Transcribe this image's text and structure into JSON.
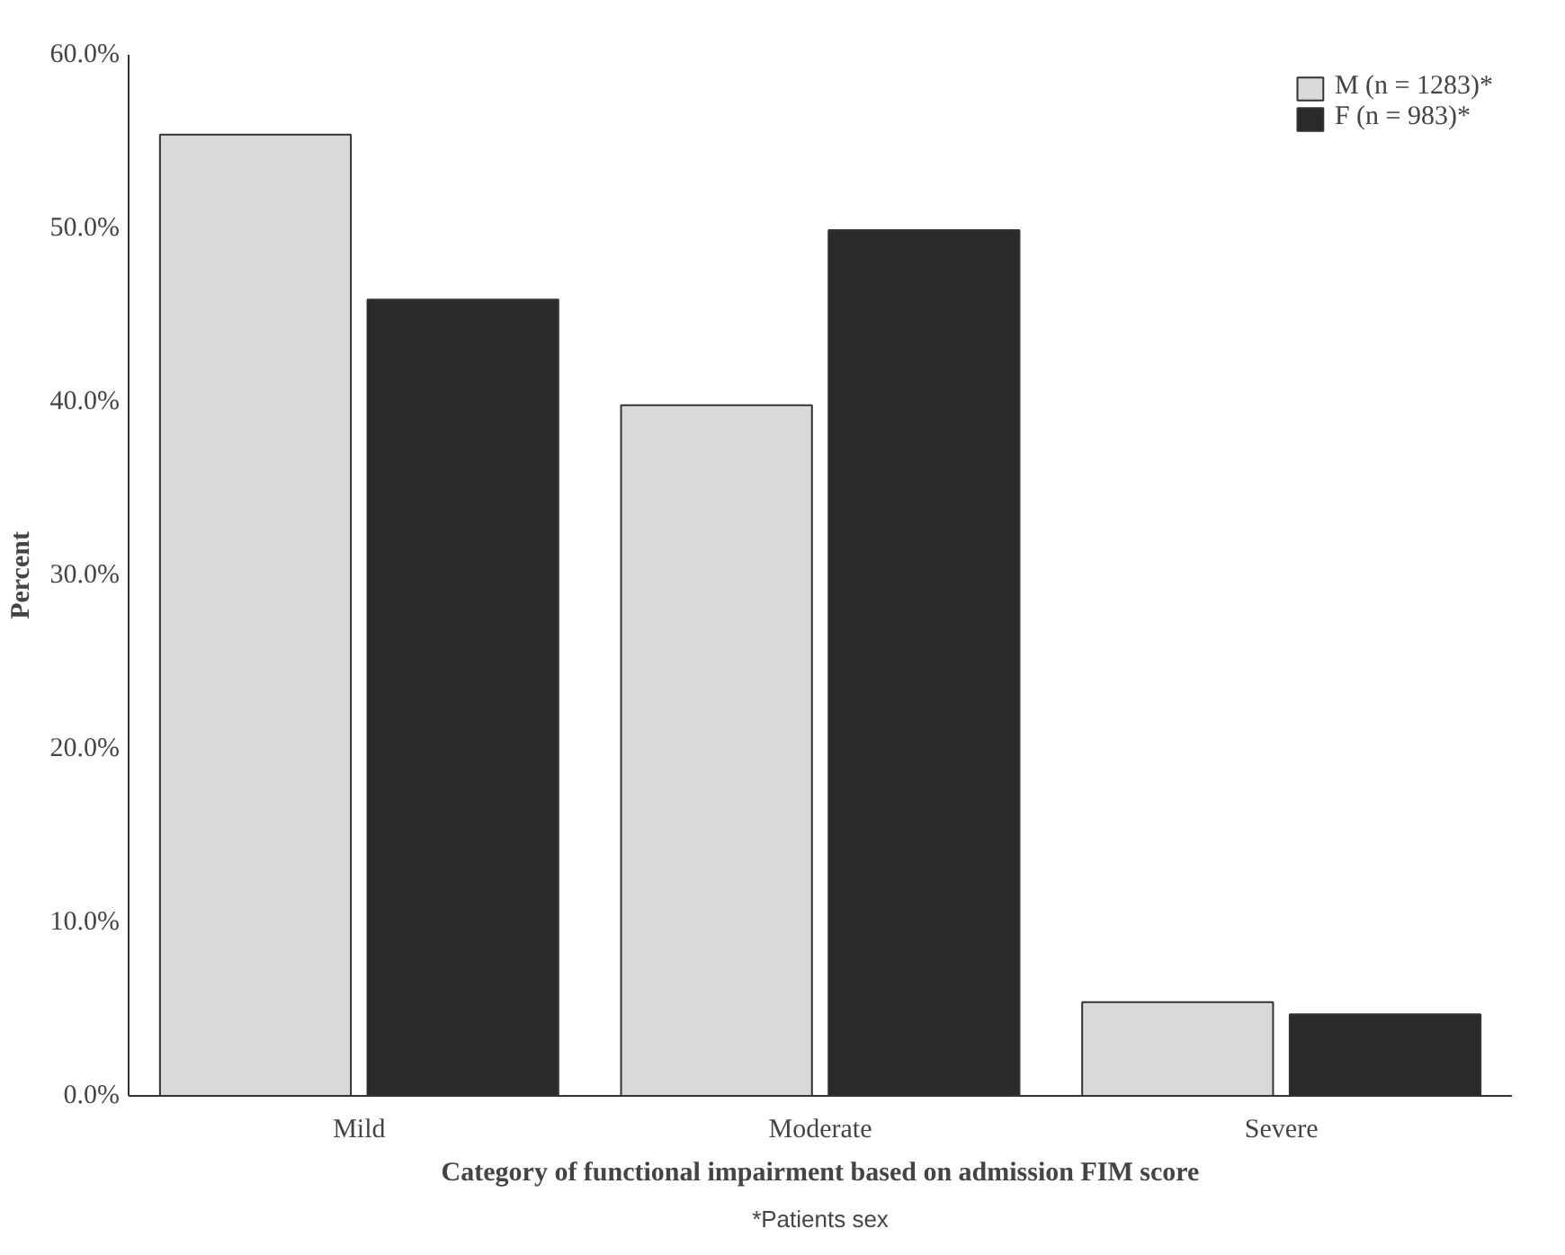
{
  "chart_data": {
    "type": "bar",
    "xlabel": "Category of functional impairment based on admission FIM score",
    "ylabel": "Percent",
    "annotations": [
      "*Patients sex"
    ],
    "categories": [
      "Mild",
      "Moderate",
      "Severe"
    ],
    "series": [
      {
        "name": "M (n = 1283)*",
        "color": "#d9d9d9",
        "values": [
          55.4,
          39.8,
          5.4
        ]
      },
      {
        "name": "F (n = 983)*",
        "color": "#2a2a2a",
        "values": [
          45.9,
          49.9,
          4.7
        ]
      }
    ],
    "ylim": [
      0,
      60
    ],
    "yticks": [
      {
        "value": 0,
        "label": "0.0%"
      },
      {
        "value": 10,
        "label": "10.0%"
      },
      {
        "value": 20,
        "label": "20.0%"
      },
      {
        "value": 30,
        "label": "30.0%"
      },
      {
        "value": 40,
        "label": "40.0%"
      },
      {
        "value": 50,
        "label": "50.0%"
      },
      {
        "value": 60,
        "label": "60.0%"
      }
    ],
    "grid": false,
    "legend": "top right"
  }
}
